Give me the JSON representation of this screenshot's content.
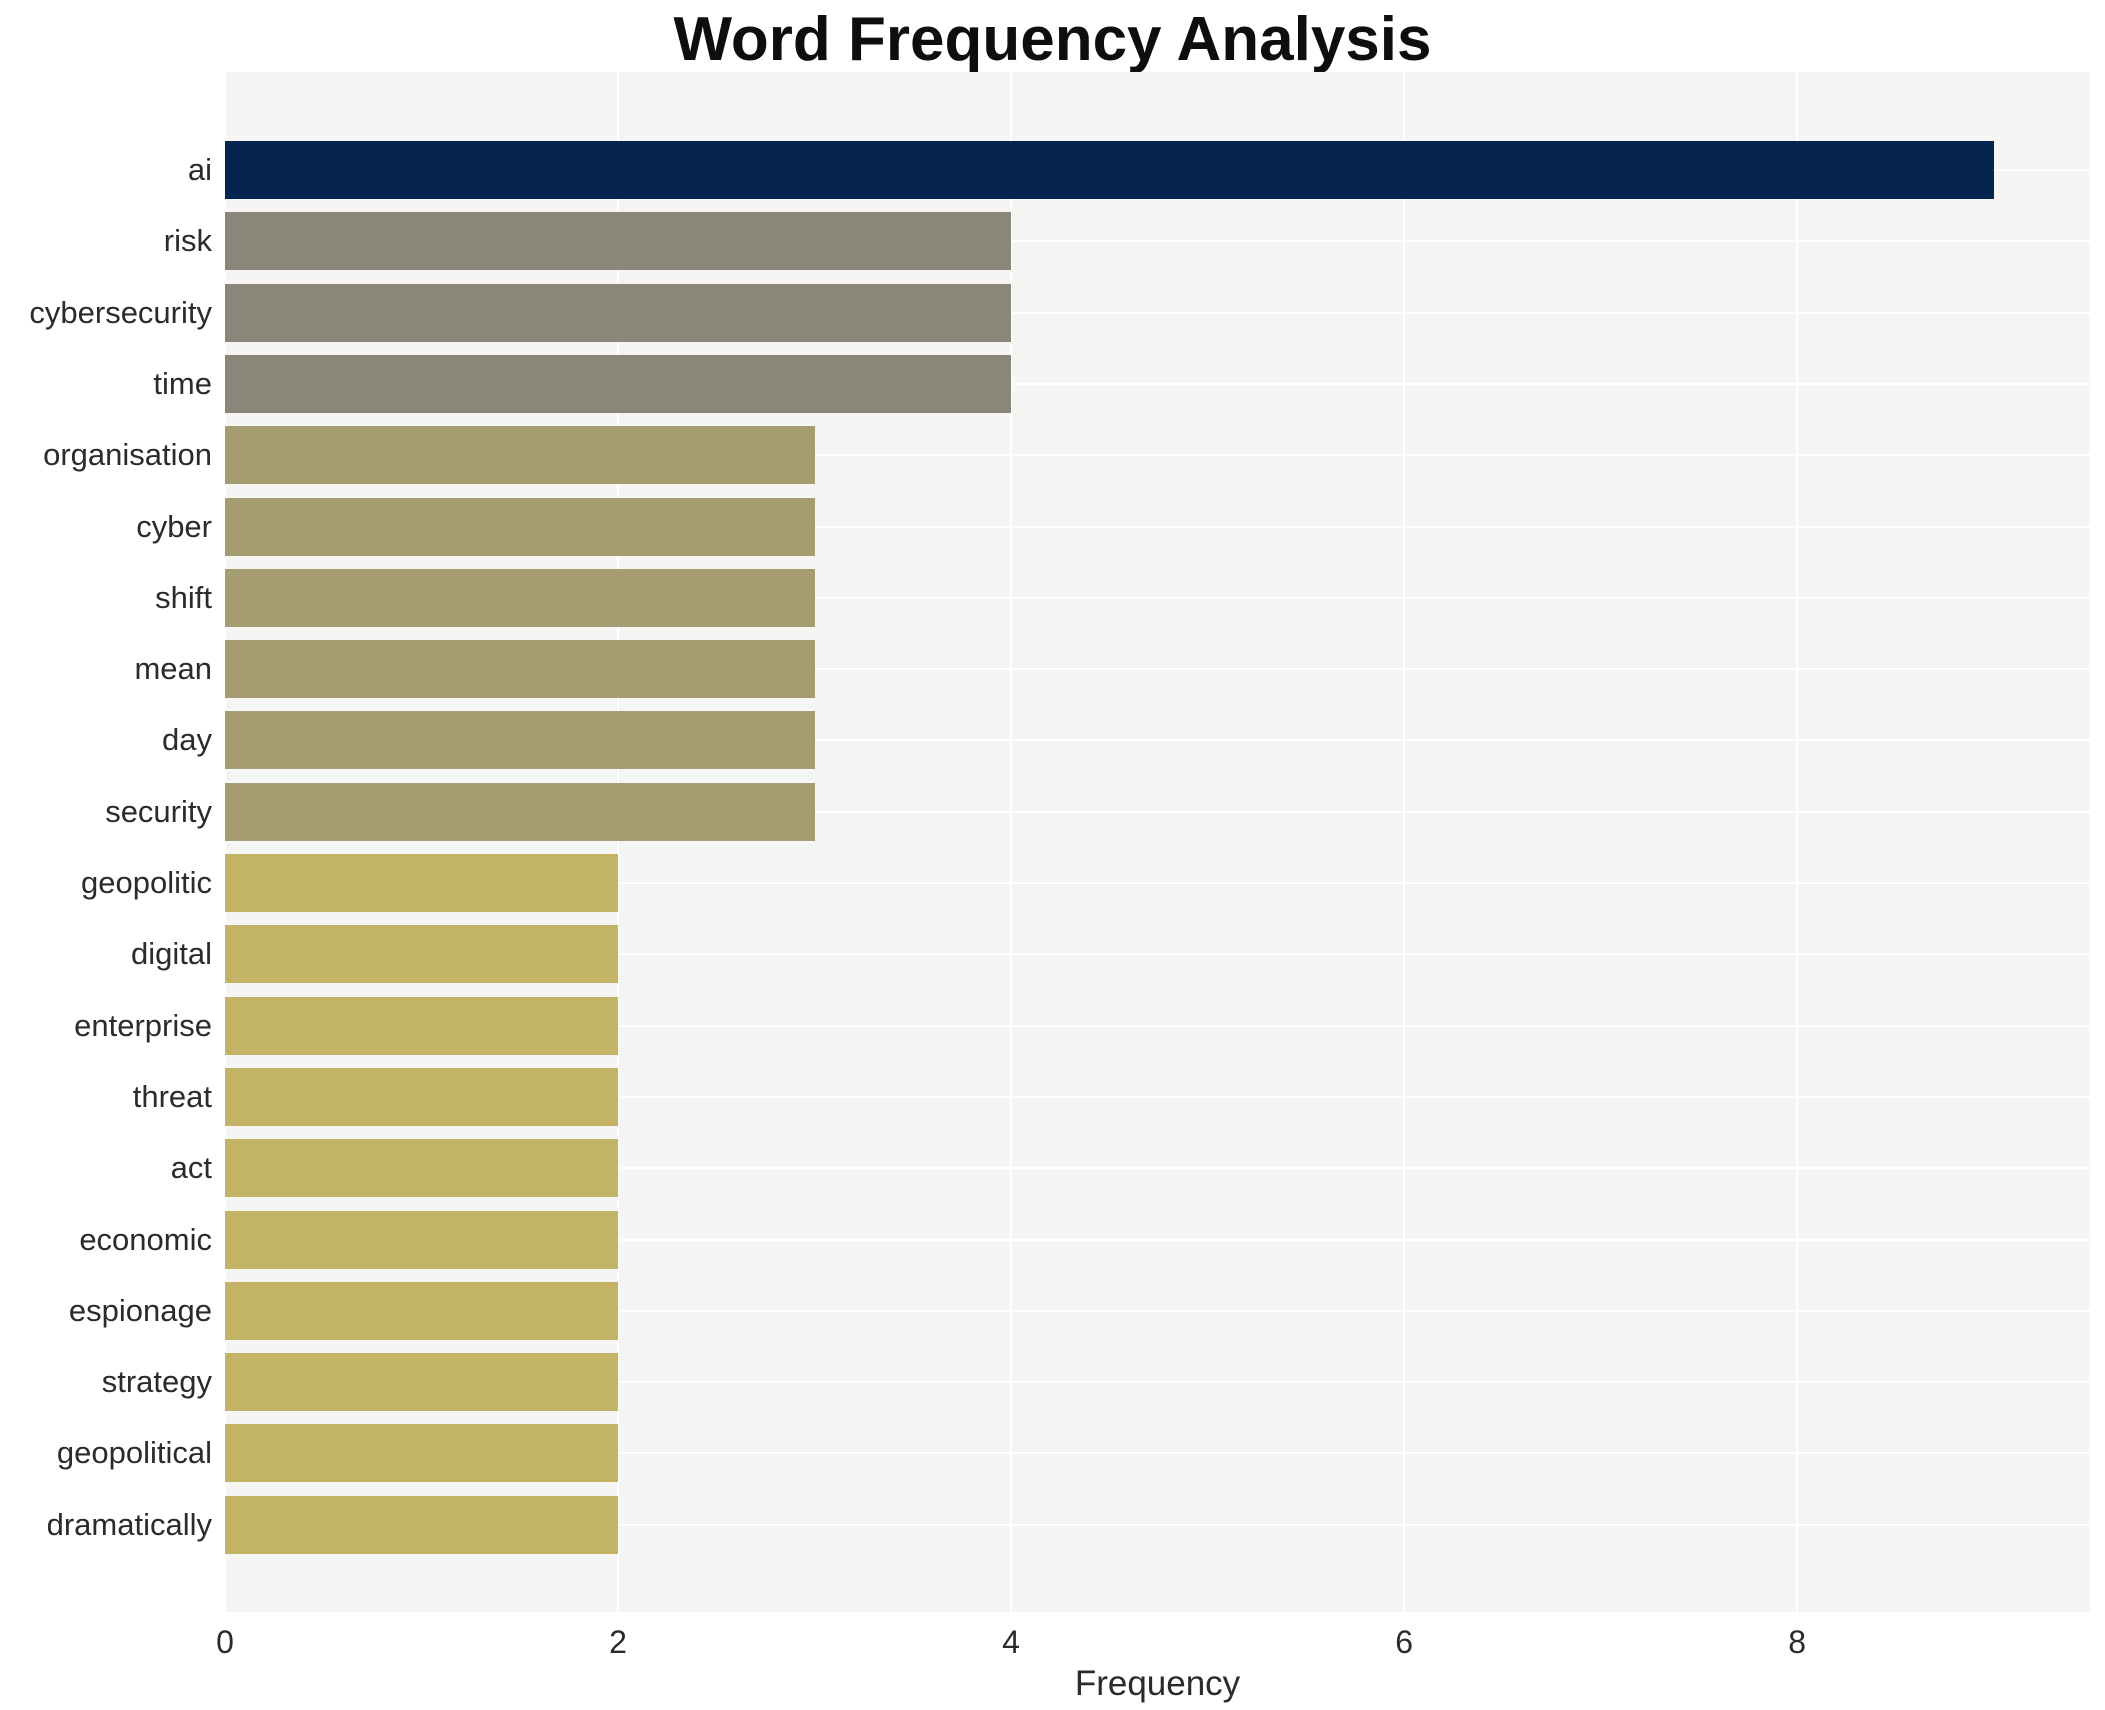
{
  "chart_data": {
    "type": "bar",
    "orientation": "horizontal",
    "title": "Word Frequency Analysis",
    "xlabel": "Frequency",
    "ylabel": "",
    "categories": [
      "ai",
      "risk",
      "cybersecurity",
      "time",
      "organisation",
      "cyber",
      "shift",
      "mean",
      "day",
      "security",
      "geopolitic",
      "digital",
      "enterprise",
      "threat",
      "act",
      "economic",
      "espionage",
      "strategy",
      "geopolitical",
      "dramatically"
    ],
    "values": [
      9,
      4,
      4,
      4,
      3,
      3,
      3,
      3,
      3,
      3,
      2,
      2,
      2,
      2,
      2,
      2,
      2,
      2,
      2,
      2
    ],
    "bar_colors": [
      "#052450",
      "#8a8679",
      "#8a8679",
      "#8a8679",
      "#a69c72",
      "#a69c72",
      "#a69c72",
      "#a69c72",
      "#a69c72",
      "#a69c72",
      "#c2b366",
      "#c2b366",
      "#c2b366",
      "#c2b366",
      "#c2b366",
      "#c2b366",
      "#c2b366",
      "#c2b366",
      "#c2b366",
      "#c2b366"
    ],
    "xticks": [
      0,
      2,
      4,
      6,
      8
    ],
    "xlim": [
      0,
      9.49
    ],
    "grid": true,
    "legend_visible": false,
    "plot_bg_color": "#f5f5f3",
    "grid_color": "#ffffff"
  }
}
